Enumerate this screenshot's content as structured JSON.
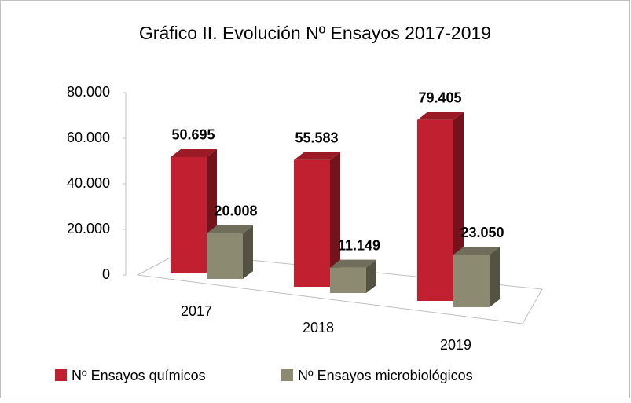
{
  "chart_data": {
    "type": "bar3d",
    "title": "Gráfico II. Evolución Nº Ensayos 2017-2019",
    "categories": [
      "2017",
      "2018",
      "2019"
    ],
    "series": [
      {
        "name": "Nº Ensayos químicos",
        "color": "#c0202f",
        "values": [
          50695,
          55583,
          79405
        ],
        "value_labels": [
          "50.695",
          "55.583",
          "79.405"
        ]
      },
      {
        "name": "Nº Ensayos microbiológicos",
        "color": "#8c8a70",
        "values": [
          20008,
          11149,
          23050
        ],
        "value_labels": [
          "20.008",
          "11.149",
          "23.050"
        ]
      }
    ],
    "ylim": [
      0,
      80000
    ],
    "yticks": [
      0,
      {
        "value": 20000,
        "label": "20.000"
      },
      {
        "value": 40000,
        "label": "40.000"
      },
      {
        "value": 60000,
        "label": "60.000"
      },
      {
        "value": 80000,
        "label": "80.000"
      }
    ],
    "legend": "bottom"
  }
}
